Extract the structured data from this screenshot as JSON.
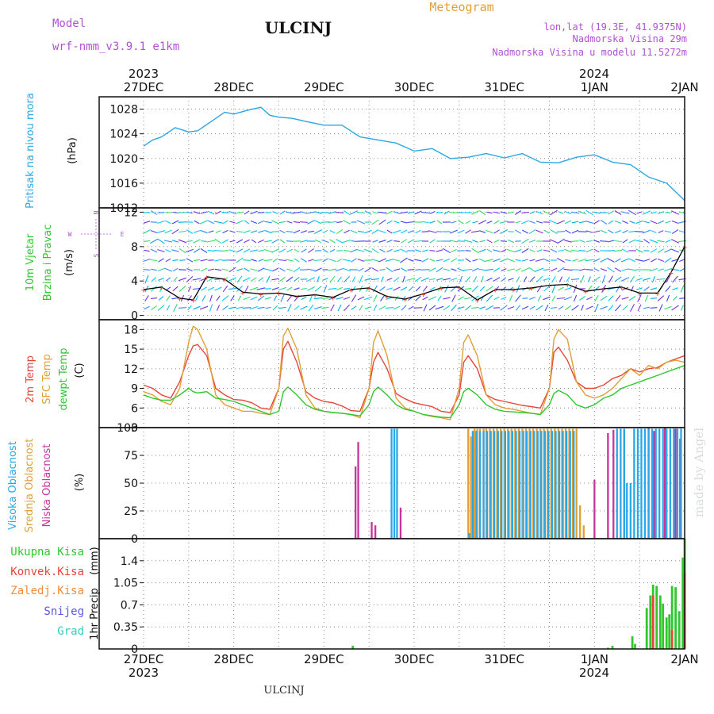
{
  "header": {
    "model_label": "Model",
    "model_name": "wrf-nmm_v3.9.1  e1km",
    "station": "ULCINJ",
    "meteogram_label": "Meteogram",
    "lonlat": "lon,lat (19.3E, 41.9375N)",
    "elevation": "Nadmorska Visina 29m",
    "model_elevation": "Nadmorska Visina u modelu 11.5272m",
    "footer_station": "ULCINJ",
    "watermark": "made by Angel"
  },
  "colors": {
    "pressure": "#2aa7e6",
    "temp2m": "#e8453a",
    "sfc_temp": "#e0a038",
    "dewpt": "#2ec82e",
    "cloud_high": "#2aa7e6",
    "cloud_mid": "#e0a038",
    "cloud_low": "#c8339a",
    "precip_total": "#2ec82e",
    "precip_conv": "#e8453a",
    "wind_line": "#000000",
    "wind_pts": "#e8453a",
    "grid": "#888888"
  },
  "time_axis": {
    "top_years": [
      "2023",
      "2024"
    ],
    "bottom_years": [
      "2023",
      "2024"
    ],
    "days": [
      "27DEC",
      "28DEC",
      "29DEC",
      "30DEC",
      "31DEC",
      "1JAN",
      "2JAN"
    ]
  },
  "chart_data": [
    {
      "id": "pressure",
      "type": "line",
      "ylabel_title": "Pritisak na nivou mora",
      "unit": "(hPa)",
      "ylim": [
        1012,
        1030
      ],
      "yticks": [
        "1028",
        "1024",
        "1020",
        "1016",
        "1012"
      ],
      "x": [
        0,
        0.1,
        0.2,
        0.35,
        0.5,
        0.6,
        0.75,
        0.9,
        1.0,
        1.15,
        1.3,
        1.4,
        1.5,
        1.65,
        1.8,
        2.0,
        2.2,
        2.4,
        2.6,
        2.8,
        3.0,
        3.2,
        3.4,
        3.6,
        3.8,
        4.0,
        4.2,
        4.4,
        4.6,
        4.8,
        5.0,
        5.2,
        5.4,
        5.6,
        5.8,
        6.0
      ],
      "series": [
        {
          "key": "pressure",
          "values": [
            1022,
            1023,
            1023.5,
            1025,
            1024.3,
            1024.5,
            1026,
            1027.5,
            1027.2,
            1027.8,
            1028.3,
            1027,
            1026.7,
            1026.5,
            1026,
            1025.4,
            1025.4,
            1023.5,
            1023,
            1022.5,
            1021.2,
            1021.6,
            1020,
            1020.2,
            1020.8,
            1020.1,
            1020.8,
            1019.4,
            1019.3,
            1020.2,
            1020.6,
            1019.4,
            1019,
            1017,
            1016,
            1013.2
          ]
        }
      ]
    },
    {
      "id": "wind",
      "type": "line",
      "ylabel_title_1": "10m Vjetar",
      "ylabel_title_2": "Brzina i Pravac",
      "unit": "(m/s)",
      "compass_n": "N",
      "compass_s": "S",
      "compass_w": "W",
      "compass_e": "E",
      "ylim": [
        -0.5,
        12.5
      ],
      "yticks": [
        "12",
        "8",
        "4",
        "0"
      ],
      "x": [
        0,
        0.2,
        0.4,
        0.55,
        0.7,
        0.9,
        1.1,
        1.3,
        1.5,
        1.7,
        1.9,
        2.1,
        2.3,
        2.5,
        2.7,
        2.9,
        3.1,
        3.3,
        3.5,
        3.7,
        3.9,
        4.1,
        4.3,
        4.5,
        4.7,
        4.9,
        5.1,
        5.3,
        5.5,
        5.7,
        5.85,
        6.0
      ],
      "series": [
        {
          "key": "wind_line",
          "values": [
            3.0,
            3.3,
            2.0,
            1.8,
            4.5,
            4.2,
            2.7,
            2.5,
            2.6,
            2.2,
            2.4,
            2.1,
            3.0,
            3.2,
            2.2,
            1.9,
            2.5,
            3.2,
            3.3,
            1.8,
            3.0,
            3.0,
            3.2,
            3.5,
            3.6,
            2.8,
            3.1,
            3.3,
            2.6,
            2.6,
            5.0,
            8.0
          ]
        }
      ]
    },
    {
      "id": "temperature",
      "type": "line",
      "ylabel_title_1": "2m Temp",
      "ylabel_title_2": "SFC Temp",
      "ylabel_title_3": "dewpt Temp",
      "unit": "(C)",
      "ylim": [
        3,
        19.5
      ],
      "yticks": [
        "18",
        "15",
        "12",
        "9",
        "6",
        "3"
      ],
      "x": [
        0,
        0.1,
        0.2,
        0.3,
        0.4,
        0.5,
        0.55,
        0.6,
        0.7,
        0.8,
        0.9,
        1.0,
        1.1,
        1.2,
        1.3,
        1.4,
        1.5,
        1.55,
        1.6,
        1.7,
        1.8,
        1.9,
        2.0,
        2.1,
        2.2,
        2.3,
        2.4,
        2.5,
        2.55,
        2.6,
        2.7,
        2.8,
        2.9,
        3.0,
        3.1,
        3.2,
        3.3,
        3.4,
        3.5,
        3.55,
        3.6,
        3.7,
        3.8,
        3.9,
        4.0,
        4.1,
        4.2,
        4.3,
        4.4,
        4.5,
        4.55,
        4.6,
        4.7,
        4.8,
        4.9,
        5.0,
        5.1,
        5.2,
        5.3,
        5.4,
        5.5,
        5.6,
        5.7,
        5.8,
        5.9,
        6.0
      ],
      "series": [
        {
          "key": "temp2m",
          "values": [
            9.5,
            9,
            8,
            7.5,
            10,
            14,
            15.5,
            15.7,
            14,
            9,
            8,
            7.3,
            7.2,
            6.8,
            6,
            5.8,
            9,
            15,
            16.2,
            13,
            8.5,
            7.5,
            7,
            6.8,
            6.3,
            5.6,
            5.5,
            9,
            13,
            14.5,
            12,
            8.2,
            7.4,
            6.8,
            6.5,
            6.2,
            5.5,
            5.3,
            8,
            13,
            14,
            12,
            8,
            7.3,
            7,
            6.7,
            6.4,
            6.2,
            6,
            9,
            14.5,
            15.3,
            13.3,
            10,
            9,
            9,
            9.5,
            10.5,
            11,
            12,
            11.5,
            12,
            12.2,
            13,
            13.5,
            14
          ]
        },
        {
          "key": "sfc_temp",
          "values": [
            8.5,
            8,
            7,
            6.5,
            9,
            16,
            18.5,
            18,
            15,
            8,
            6.5,
            6,
            5.5,
            5.5,
            5.2,
            5.0,
            9,
            17,
            18.2,
            15,
            8,
            6,
            5.5,
            5.3,
            5.2,
            5.0,
            4.5,
            9,
            16,
            17.8,
            14,
            7.5,
            6,
            5.5,
            5,
            4.7,
            4.5,
            4.2,
            9,
            16,
            17.2,
            14,
            8,
            6.5,
            6,
            5.8,
            5.5,
            5.2,
            5.0,
            9,
            16.5,
            18,
            16.5,
            10,
            8,
            7.5,
            8,
            9,
            10.5,
            12,
            11,
            12.5,
            12,
            13,
            13.3,
            13
          ]
        },
        {
          "key": "dewpt",
          "values": [
            8,
            7.5,
            7.2,
            7.2,
            8,
            9,
            8.5,
            8.3,
            8.5,
            7.5,
            7.3,
            7,
            6.5,
            6,
            5.5,
            5,
            5.5,
            8.5,
            9.2,
            8,
            6.5,
            5.8,
            5.5,
            5.3,
            5.2,
            5.0,
            4.8,
            6.5,
            8.5,
            9.2,
            8,
            6.5,
            5.8,
            5.5,
            5,
            4.8,
            4.6,
            4.5,
            6.5,
            8.5,
            9,
            8,
            6.5,
            5.8,
            5.5,
            5.4,
            5.3,
            5.2,
            5.0,
            6.5,
            8.2,
            8.7,
            8,
            6.5,
            6,
            6.5,
            7.5,
            8,
            9,
            9.5,
            10,
            10.5,
            11,
            11.5,
            12,
            12.5
          ]
        }
      ]
    },
    {
      "id": "clouds",
      "type": "bar",
      "ylabel_title_1": "Visoka Oblacnost",
      "ylabel_title_2": "Srednja Oblacnost",
      "ylabel_title_3": "Niska Oblacnost",
      "unit": "(%)",
      "ylim": [
        0,
        100
      ],
      "yticks": [
        "100",
        "75",
        "50",
        "25",
        "0"
      ],
      "bar_width_days": 0.02,
      "series": [
        {
          "key": "cloud_low",
          "points": [
            [
              2.35,
              65
            ],
            [
              2.38,
              87
            ],
            [
              2.53,
              15
            ],
            [
              2.57,
              12
            ],
            [
              2.85,
              28
            ],
            [
              5.0,
              53
            ],
            [
              5.15,
              95
            ],
            [
              5.21,
              98
            ],
            [
              5.33,
              98
            ],
            [
              5.6,
              100
            ],
            [
              5.66,
              97
            ],
            [
              5.78,
              100
            ],
            [
              5.9,
              99
            ],
            [
              5.95,
              90
            ]
          ]
        },
        {
          "key": "cloud_mid",
          "points": [
            [
              3.6,
              99
            ],
            [
              3.63,
              92
            ],
            [
              3.67,
              99
            ],
            [
              3.7,
              99
            ],
            [
              3.73,
              99
            ],
            [
              3.77,
              99
            ],
            [
              3.8,
              99
            ],
            [
              3.84,
              99
            ],
            [
              3.88,
              99
            ],
            [
              3.92,
              99
            ],
            [
              3.96,
              99
            ],
            [
              4.0,
              99
            ],
            [
              4.04,
              99
            ],
            [
              4.08,
              99
            ],
            [
              4.12,
              99
            ],
            [
              4.16,
              99
            ],
            [
              4.2,
              99
            ],
            [
              4.24,
              99
            ],
            [
              4.28,
              99
            ],
            [
              4.32,
              99
            ],
            [
              4.36,
              99
            ],
            [
              4.4,
              99
            ],
            [
              4.44,
              99
            ],
            [
              4.48,
              99
            ],
            [
              4.52,
              99
            ],
            [
              4.56,
              99
            ],
            [
              4.6,
              99
            ],
            [
              4.64,
              99
            ],
            [
              4.68,
              99
            ],
            [
              4.72,
              99
            ],
            [
              4.76,
              99
            ],
            [
              4.8,
              99
            ],
            [
              4.84,
              30
            ],
            [
              4.88,
              12
            ]
          ]
        },
        {
          "key": "cloud_high",
          "points": [
            [
              2.75,
              99
            ],
            [
              2.78,
              99
            ],
            [
              2.81,
              99
            ],
            [
              3.61,
              5
            ],
            [
              3.65,
              97
            ],
            [
              3.69,
              97
            ],
            [
              3.73,
              97
            ],
            [
              3.77,
              97
            ],
            [
              3.81,
              97
            ],
            [
              3.85,
              97
            ],
            [
              3.89,
              97
            ],
            [
              3.93,
              97
            ],
            [
              3.97,
              97
            ],
            [
              4.01,
              97
            ],
            [
              4.05,
              97
            ],
            [
              4.09,
              97
            ],
            [
              4.13,
              97
            ],
            [
              4.17,
              97
            ],
            [
              4.21,
              97
            ],
            [
              4.25,
              97
            ],
            [
              4.29,
              97
            ],
            [
              4.33,
              97
            ],
            [
              4.37,
              97
            ],
            [
              4.41,
              97
            ],
            [
              4.45,
              97
            ],
            [
              4.49,
              97
            ],
            [
              4.53,
              97
            ],
            [
              4.57,
              97
            ],
            [
              4.61,
              97
            ],
            [
              4.65,
              97
            ],
            [
              4.69,
              97
            ],
            [
              4.73,
              97
            ],
            [
              4.77,
              97
            ],
            [
              5.25,
              99
            ],
            [
              5.29,
              99
            ],
            [
              5.33,
              99
            ],
            [
              5.36,
              50
            ],
            [
              5.4,
              50
            ],
            [
              5.44,
              99
            ],
            [
              5.48,
              99
            ],
            [
              5.52,
              99
            ],
            [
              5.56,
              99
            ],
            [
              5.6,
              99
            ],
            [
              5.64,
              99
            ],
            [
              5.68,
              99
            ],
            [
              5.72,
              99
            ],
            [
              5.76,
              99
            ],
            [
              5.8,
              99
            ],
            [
              5.84,
              99
            ],
            [
              5.88,
              99
            ],
            [
              5.92,
              99
            ],
            [
              5.96,
              99
            ]
          ]
        }
      ]
    },
    {
      "id": "precip",
      "type": "bar",
      "legend_total": "Ukupna Kisa",
      "legend_conv": "Konvek.Kisa",
      "legend_frozen": "Zaledj.Kisa",
      "legend_snow": "Snijeg",
      "legend_hail": "Grad",
      "ylabel_title": "1hr Precip",
      "unit": "(mm)",
      "ylim": [
        0,
        1.75
      ],
      "yticks": [
        "1.4",
        "1.05",
        "0.7",
        "0.35",
        "0"
      ],
      "bar_width_days": 0.025,
      "series": [
        {
          "key": "precip_total",
          "points": [
            [
              2.32,
              0.05
            ],
            [
              5.15,
              0.02
            ],
            [
              5.2,
              0.05
            ],
            [
              5.42,
              0.2
            ],
            [
              5.45,
              0.08
            ],
            [
              5.58,
              0.65
            ],
            [
              5.62,
              0.85
            ],
            [
              5.65,
              1.02
            ],
            [
              5.69,
              1.0
            ],
            [
              5.73,
              0.85
            ],
            [
              5.76,
              0.72
            ],
            [
              5.8,
              0.5
            ],
            [
              5.83,
              0.55
            ],
            [
              5.86,
              1.0
            ],
            [
              5.9,
              0.98
            ],
            [
              5.94,
              0.6
            ],
            [
              5.98,
              1.45
            ],
            [
              6.0,
              1.75
            ]
          ]
        },
        {
          "key": "precip_conv",
          "points": [
            [
              5.65,
              0.85
            ],
            [
              5.86,
              0.3
            ],
            [
              6.0,
              1.2
            ]
          ]
        }
      ]
    }
  ]
}
